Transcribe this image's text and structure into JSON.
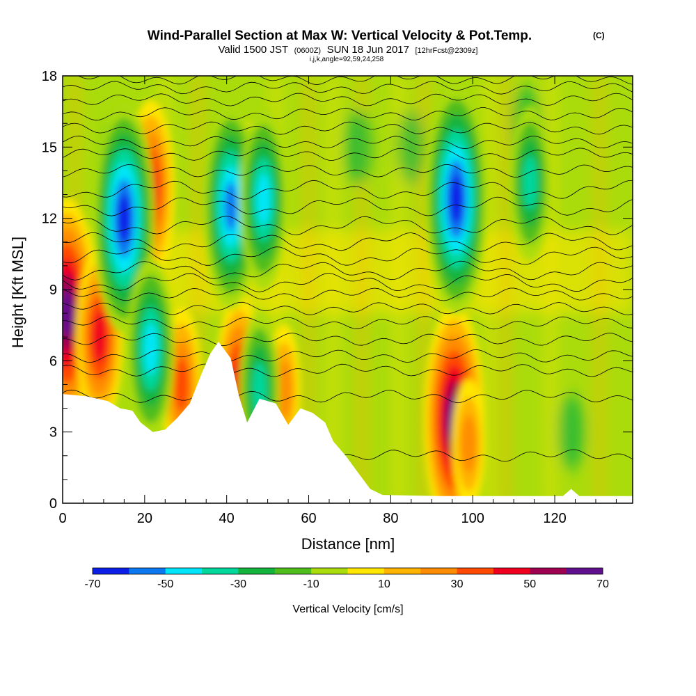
{
  "chart_data": {
    "type": "heatmap",
    "title": "Wind-Parallel Section at Max W: Vertical Velocity & Pot.Temp.",
    "copyright_mark": "(C)",
    "subtitle_parts": {
      "valid_prefix": "Valid 1500 JST",
      "utc": "(0600Z)",
      "date": "SUN 18 Jun 2017",
      "forecast": "[12hrFcst@2309z]"
    },
    "grid_info": "i,j,k,angle=92,59,24,258",
    "xlabel": "Distance [nm]",
    "ylabel": "Height [Kft MSL]",
    "xlim": [
      0,
      139
    ],
    "ylim": [
      0,
      18
    ],
    "x_ticks": [
      0,
      20,
      40,
      60,
      80,
      100,
      120
    ],
    "y_ticks": [
      0,
      3,
      6,
      9,
      12,
      15,
      18
    ],
    "colorbar": {
      "label": "Vertical Velocity [cm/s]",
      "tick_labels": [
        "-70",
        "-50",
        "-30",
        "-10",
        "10",
        "30",
        "50",
        "70"
      ],
      "levels": [
        -70,
        -60,
        -50,
        -40,
        -30,
        -20,
        -10,
        0,
        10,
        20,
        30,
        40,
        50,
        60,
        70
      ],
      "colors": [
        "#0a1ee8",
        "#0a78f0",
        "#00e6f8",
        "#00d79b",
        "#12b43c",
        "#50be1a",
        "#aadc0c",
        "#ffe600",
        "#ffb400",
        "#ff8c00",
        "#ff4a00",
        "#f0001e",
        "#a00050",
        "#60108c"
      ]
    },
    "terrain": [
      [
        0,
        4.6
      ],
      [
        6,
        4.5
      ],
      [
        11,
        4.3
      ],
      [
        14,
        4.0
      ],
      [
        17,
        3.9
      ],
      [
        19,
        3.4
      ],
      [
        22,
        3.0
      ],
      [
        25,
        3.1
      ],
      [
        28,
        3.6
      ],
      [
        31,
        4.2
      ],
      [
        34,
        5.5
      ],
      [
        36,
        6.3
      ],
      [
        38,
        6.8
      ],
      [
        41,
        6.1
      ],
      [
        43,
        4.5
      ],
      [
        45,
        3.4
      ],
      [
        48,
        4.4
      ],
      [
        52,
        4.2
      ],
      [
        55,
        3.3
      ],
      [
        58,
        4.0
      ],
      [
        61,
        3.8
      ],
      [
        64,
        3.4
      ],
      [
        66,
        2.6
      ],
      [
        69,
        2.0
      ],
      [
        72,
        1.3
      ],
      [
        75,
        0.6
      ],
      [
        78,
        0.35
      ],
      [
        92,
        0.3
      ],
      [
        105,
        0.3
      ],
      [
        122,
        0.3
      ],
      [
        124,
        0.6
      ],
      [
        126,
        0.3
      ],
      [
        139,
        0.3
      ]
    ],
    "updraft_cores": [
      {
        "x": 1,
        "z": 8.0,
        "w": 70
      },
      {
        "x": 9,
        "z": 7.0,
        "w": 50
      },
      {
        "x": 21.5,
        "z": 13.2,
        "w": 50
      },
      {
        "x": 29,
        "z": 5.0,
        "w": 40
      },
      {
        "x": 43,
        "z": 5.0,
        "w": 50
      },
      {
        "x": 45,
        "z": 12.8,
        "w": 40
      },
      {
        "x": 54,
        "z": 4.8,
        "w": 30
      },
      {
        "x": 95.5,
        "z": 3.5,
        "w": 70
      },
      {
        "x": 99,
        "z": 2.5,
        "w": 30
      }
    ],
    "downdraft_cores": [
      {
        "x": 15,
        "z": 12.0,
        "w": -70
      },
      {
        "x": 21.5,
        "z": 6.5,
        "w": -50
      },
      {
        "x": 41,
        "z": 12.5,
        "w": -60
      },
      {
        "x": 49,
        "z": 12.8,
        "w": -50
      },
      {
        "x": 48,
        "z": 4.8,
        "w": -40
      },
      {
        "x": 96,
        "z": 12.8,
        "w": -70
      },
      {
        "x": 114,
        "z": 13.5,
        "w": -40
      }
    ],
    "isentrope_levels_kft": [
      2.0,
      4.5,
      5.6,
      6.2,
      6.9,
      7.6,
      8.2,
      8.8,
      9.3,
      9.8,
      10.4,
      11.0,
      11.7,
      12.5,
      13.2,
      14.0,
      14.7,
      15.2,
      15.8,
      16.4,
      17.0,
      17.5,
      17.9
    ]
  }
}
